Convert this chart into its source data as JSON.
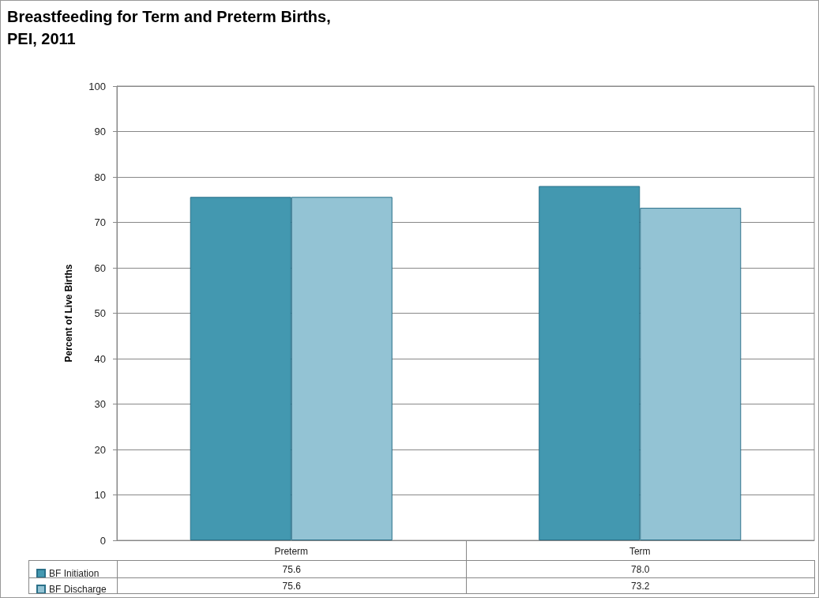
{
  "chart_data": {
    "type": "bar",
    "title": "Breastfeeding for Term and Preterm Births, PEI, 2011",
    "ylabel": "Percent of Live Births",
    "categories": [
      "Preterm",
      "Term"
    ],
    "series": [
      {
        "name": "BF Initiation",
        "color": "#4398b0",
        "values": [
          75.6,
          78.0
        ],
        "value_labels": [
          "75.6",
          "78.0"
        ]
      },
      {
        "name": "BF Discharge",
        "color": "#93c3d4",
        "values": [
          75.6,
          73.2
        ],
        "value_labels": [
          "75.6",
          "73.2"
        ]
      }
    ],
    "ylim": [
      0,
      100
    ],
    "yticks": [
      0,
      10,
      20,
      30,
      40,
      50,
      60,
      70,
      80,
      90,
      100
    ],
    "grid": "y",
    "legend": "bottom"
  }
}
